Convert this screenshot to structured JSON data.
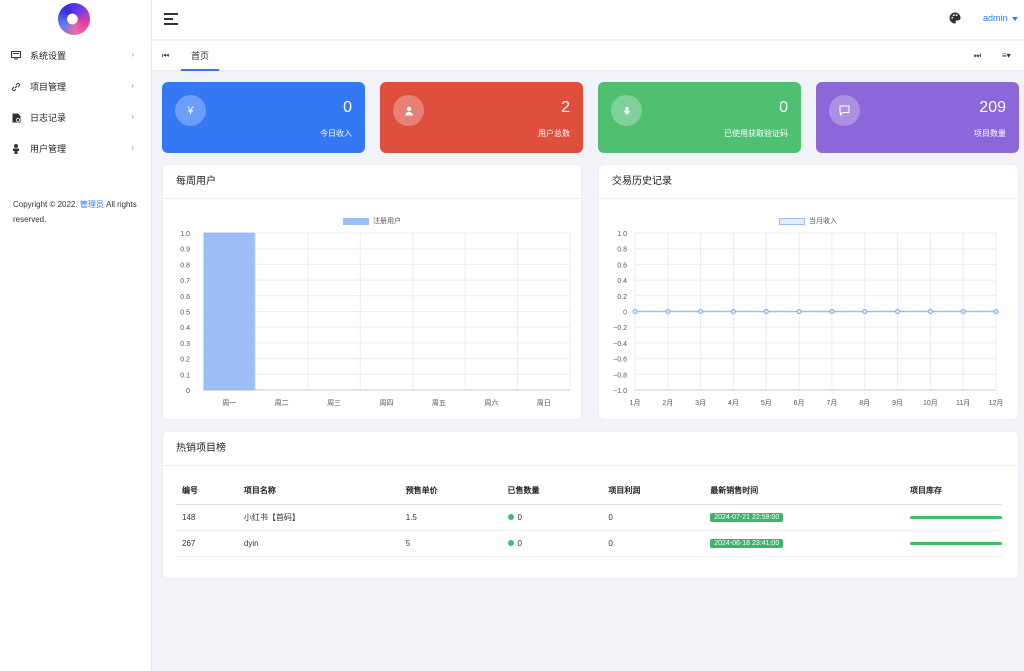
{
  "sidebar": {
    "items": [
      {
        "label": "系统设置",
        "icon": "monitor-icon"
      },
      {
        "label": "项目管理",
        "icon": "link-icon"
      },
      {
        "label": "日志记录",
        "icon": "document-icon"
      },
      {
        "label": "用户管理",
        "icon": "user-icon"
      }
    ],
    "copyright_prefix": "Copyright © 2022. ",
    "copyright_link": "管理员",
    "copyright_suffix": " All rights reserved."
  },
  "header": {
    "user": "admin"
  },
  "tabs": {
    "home": "首页"
  },
  "cards": [
    {
      "value": "0",
      "label": "今日收入",
      "icon": "¥",
      "color": "#3478f6"
    },
    {
      "value": "2",
      "label": "用户总数",
      "icon": "user",
      "color": "#e04f3e"
    },
    {
      "value": "0",
      "label": "已使用获取验证码",
      "icon": "download",
      "color": "#4fbf72"
    },
    {
      "value": "209",
      "label": "项目数量",
      "icon": "message",
      "color": "#8b67d9"
    }
  ],
  "weekly": {
    "title": "每周用户",
    "chart_data": {
      "type": "bar",
      "categories": [
        "周一",
        "周二",
        "周三",
        "周四",
        "周五",
        "周六",
        "周日"
      ],
      "series": [
        {
          "name": "注册用户",
          "values": [
            1,
            0,
            0,
            0,
            0,
            0,
            0
          ]
        }
      ],
      "ylim": [
        0,
        1.0
      ],
      "yticks": [
        "1.0",
        "0.9",
        "0.8",
        "0.7",
        "0.6",
        "0.5",
        "0.4",
        "0.3",
        "0.2",
        "0.1",
        "0"
      ],
      "legend": "top-center",
      "color": "#9dbdf6"
    }
  },
  "history": {
    "title": "交易历史记录",
    "chart_data": {
      "type": "line",
      "categories": [
        "1月",
        "2月",
        "3月",
        "4月",
        "5月",
        "6月",
        "7月",
        "8月",
        "9月",
        "10月",
        "11月",
        "12月"
      ],
      "series": [
        {
          "name": "当月收入",
          "values": [
            0,
            0,
            0,
            0,
            0,
            0,
            0,
            0,
            0,
            0,
            0,
            0
          ]
        }
      ],
      "ylim": [
        -1.0,
        1.0
      ],
      "yticks": [
        "1.0",
        "0.8",
        "0.6",
        "0.4",
        "0.2",
        "0",
        "−0.2",
        "−0.4",
        "−0.6",
        "−0.8",
        "−1.0"
      ],
      "legend": "top-center",
      "color": "#9dbdf6"
    }
  },
  "hot": {
    "title": "热销项目榜",
    "columns": [
      "编号",
      "项目名称",
      "预售单价",
      "已售数量",
      "项目利润",
      "最新销售时间",
      "项目库存"
    ],
    "rows": [
      {
        "id": "148",
        "name": "小红书【首码】",
        "price": "1.5",
        "sold": "0",
        "profit": "0",
        "time": "2024-07-21 22:59:00"
      },
      {
        "id": "267",
        "name": "dyin",
        "price": "5",
        "sold": "0",
        "profit": "0",
        "time": "2024-06-18 23:41:00"
      }
    ]
  }
}
